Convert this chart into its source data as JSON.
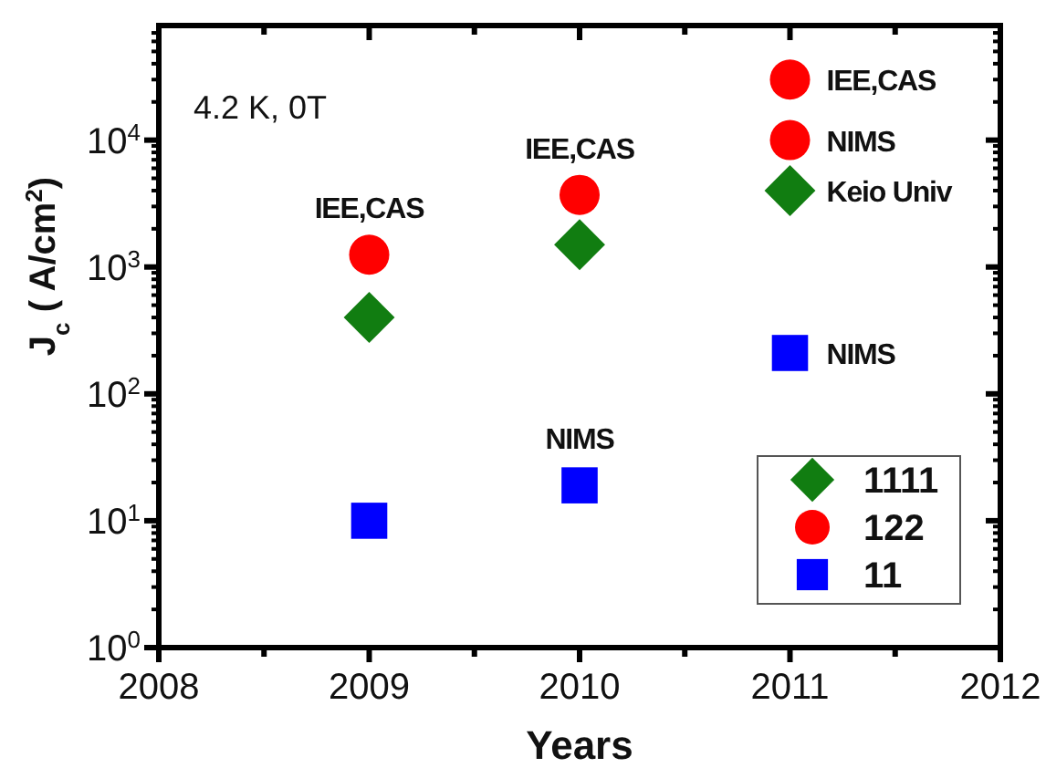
{
  "chart_data": {
    "type": "scatter",
    "xlabel": "Years",
    "ylabel": "J$_{c}$ ( A/cm$^{2}$)",
    "log": "y",
    "xlim": [
      2008,
      2012
    ],
    "xticks": [
      2008,
      {
        "value": 2008.5,
        "label": null
      },
      2009,
      {
        "value": 2009.5,
        "label": null
      },
      2010,
      {
        "value": 2010.5,
        "label": null
      },
      2011,
      {
        "value": 2011.5,
        "label": null
      },
      2012
    ],
    "ylim": [
      1,
      80000
    ],
    "yticks": [
      {
        "value": 1,
        "label": "10$^{0}$"
      },
      {
        "value": 2,
        "label": null
      },
      {
        "value": 3,
        "label": null
      },
      {
        "value": 4,
        "label": null
      },
      {
        "value": 5,
        "label": null
      },
      {
        "value": 6,
        "label": null
      },
      {
        "value": 7,
        "label": null
      },
      {
        "value": 8,
        "label": null
      },
      {
        "value": 9,
        "label": null
      },
      {
        "value": 10,
        "label": "10$^{1}$"
      },
      {
        "value": 20,
        "label": null
      },
      {
        "value": 30,
        "label": null
      },
      {
        "value": 40,
        "label": null
      },
      {
        "value": 50,
        "label": null
      },
      {
        "value": 60,
        "label": null
      },
      {
        "value": 70,
        "label": null
      },
      {
        "value": 80,
        "label": null
      },
      {
        "value": 90,
        "label": null
      },
      {
        "value": 100,
        "label": "10$^{2}$"
      },
      {
        "value": 200,
        "label": null
      },
      {
        "value": 300,
        "label": null
      },
      {
        "value": 400,
        "label": null
      },
      {
        "value": 500,
        "label": null
      },
      {
        "value": 600,
        "label": null
      },
      {
        "value": 700,
        "label": null
      },
      {
        "value": 800,
        "label": null
      },
      {
        "value": 900,
        "label": null
      },
      {
        "value": 1000,
        "label": "10$^{3}$"
      },
      {
        "value": 2000,
        "label": null
      },
      {
        "value": 3000,
        "label": null
      },
      {
        "value": 4000,
        "label": null
      },
      {
        "value": 5000,
        "label": null
      },
      {
        "value": 6000,
        "label": null
      },
      {
        "value": 7000,
        "label": null
      },
      {
        "value": 8000,
        "label": null
      },
      {
        "value": 9000,
        "label": null
      },
      {
        "value": 10000,
        "label": "10$^{4}$"
      },
      {
        "value": 20000,
        "label": null
      },
      {
        "value": 30000,
        "label": null
      },
      {
        "value": 40000,
        "label": null
      },
      {
        "value": 50000,
        "label": null
      },
      {
        "value": 60000,
        "label": null
      },
      {
        "value": 70000,
        "label": null
      }
    ],
    "series": [
      {
        "name": "1111",
        "color": "#117d11",
        "marker": "diamond",
        "x": [
          2009,
          2010,
          2011
        ],
        "values": [
          400,
          1500,
          4000
        ]
      },
      {
        "name": "122",
        "color": "#ff0000",
        "marker": "circle",
        "x": [
          2009,
          2010,
          2011,
          2011
        ],
        "values": [
          1250,
          3700,
          30000,
          10000
        ]
      },
      {
        "name": "11",
        "color": "#0000ff",
        "marker": "square",
        "x": [
          2009,
          2010,
          2011
        ],
        "values": [
          10,
          19,
          210
        ]
      }
    ],
    "annotations": [
      "4.2 K, 0T",
      {
        "text": "IEE,CAS",
        "x": 2009,
        "y": 1250
      },
      {
        "text": "IEE,CAS",
        "x": 2010,
        "y": 3700
      },
      {
        "text": "NIMS",
        "x": 2010,
        "y": 19
      },
      {
        "text": "IEE,CAS",
        "x": 2011,
        "y": 30000
      },
      {
        "text": "NIMS",
        "x": 2011,
        "y": 10000
      },
      {
        "text": "Keio Univ",
        "x": 2011,
        "y": 4000
      },
      {
        "text": "NIMS",
        "x": 2011,
        "y": 210
      }
    ],
    "legend": "bottom right",
    "grid": false
  }
}
